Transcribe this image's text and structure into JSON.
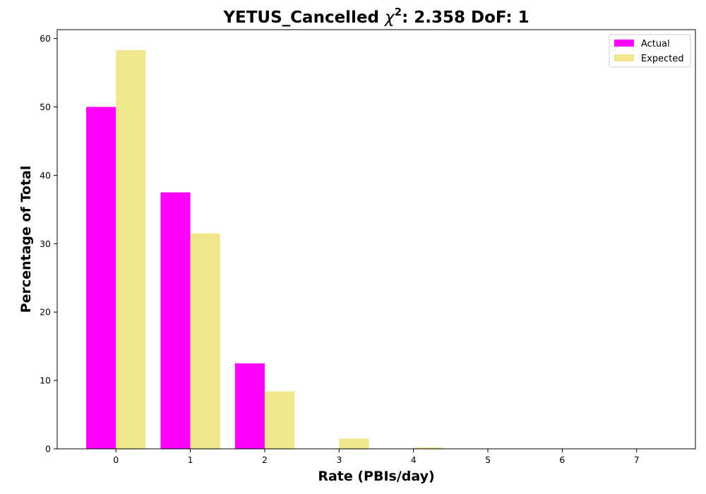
{
  "chart_data": {
    "type": "bar",
    "title": "YETUS_Cancelled",
    "title_chi": "χ",
    "title_chi_power": "2",
    "title_stat": ": 2.358 DoF: 1",
    "xlabel": "Rate (PBIs/day)",
    "ylabel": "Percentage of Total",
    "categories": [
      "0",
      "1",
      "2",
      "3",
      "4",
      "5",
      "6",
      "7"
    ],
    "x": [
      0,
      1,
      2,
      3,
      4,
      5,
      6,
      7
    ],
    "xlim": [
      -0.79,
      7.79
    ],
    "ylim": [
      0,
      61.3
    ],
    "yticks": [
      0,
      10,
      20,
      30,
      40,
      50,
      60
    ],
    "bar_width": 0.4,
    "grid": false,
    "legend_position": "top-right",
    "series": [
      {
        "name": "Actual",
        "color": "#ff00ff",
        "values": [
          50.0,
          37.5,
          12.5,
          0,
          0,
          0,
          0,
          0
        ]
      },
      {
        "name": "Expected",
        "color": "#f0e68c",
        "values": [
          58.3,
          31.5,
          8.4,
          1.5,
          0.2,
          0.03,
          0.005,
          0.001
        ]
      }
    ]
  }
}
